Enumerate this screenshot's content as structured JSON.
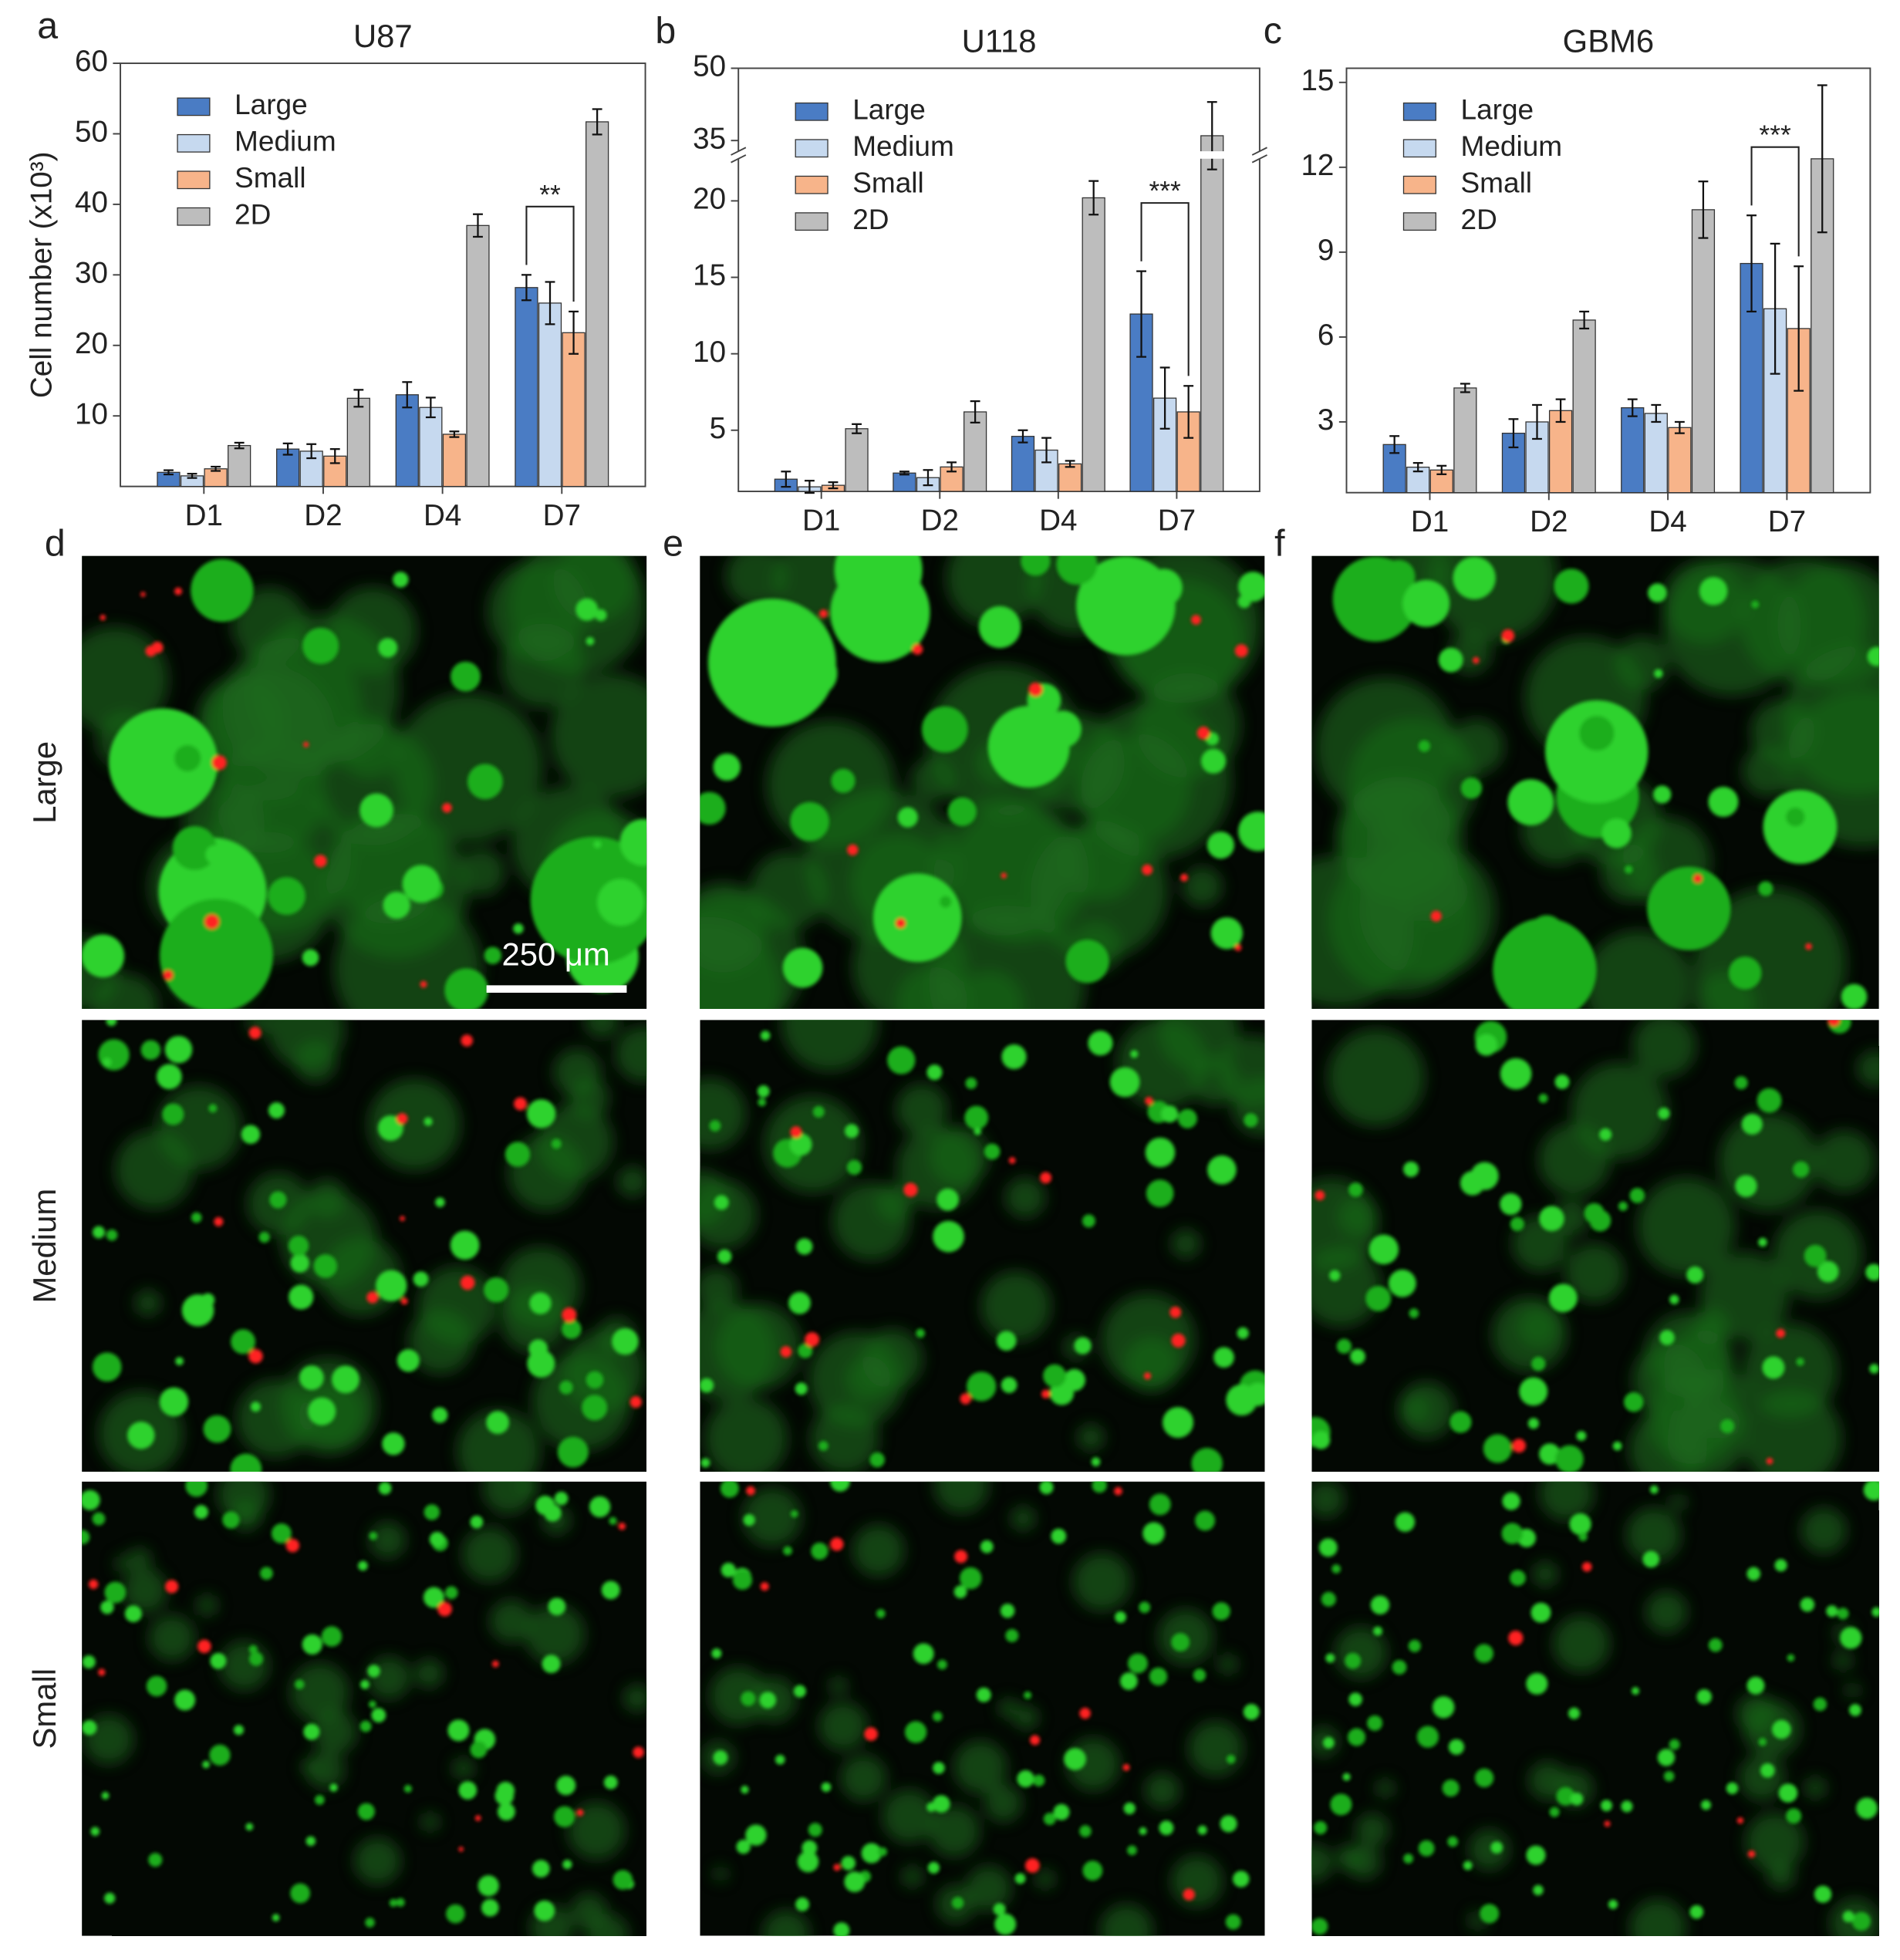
{
  "chart_data": [
    {
      "type": "bar",
      "panel": "a",
      "title": "U87",
      "ylabel": "Cell number (x10³)",
      "categories": [
        "D1",
        "D2",
        "D4",
        "D7"
      ],
      "series": [
        {
          "name": "Large",
          "color": "#4a7cc4",
          "values": [
            2,
            5.3,
            13,
            28.2
          ],
          "errors": [
            0.3,
            0.8,
            1.8,
            1.8
          ]
        },
        {
          "name": "Medium",
          "color": "#c6d9ef",
          "values": [
            1.5,
            5,
            11.2,
            26
          ],
          "errors": [
            0.3,
            1,
            1.4,
            3
          ]
        },
        {
          "name": "Small",
          "color": "#f7b48a",
          "values": [
            2.5,
            4.3,
            7.4,
            21.8
          ],
          "errors": [
            0.3,
            1,
            0.4,
            3
          ]
        },
        {
          "name": "2D",
          "color": "#bdbdbd",
          "values": [
            5.8,
            12.5,
            37,
            51.7
          ],
          "errors": [
            0.4,
            1.2,
            1.6,
            1.8
          ]
        }
      ],
      "ylim": [
        0,
        60
      ],
      "yticks": [
        10,
        20,
        30,
        40,
        50,
        60
      ],
      "annotation": "**",
      "legend": "upper left"
    },
    {
      "type": "bar",
      "panel": "b",
      "title": "U118",
      "categories": [
        "D1",
        "D2",
        "D4",
        "D7"
      ],
      "series": [
        {
          "name": "Large",
          "color": "#4a7cc4",
          "values": [
            1.8,
            2.2,
            4.6,
            12.6
          ],
          "errors": [
            0.5,
            0.1,
            0.4,
            2.8
          ]
        },
        {
          "name": "Medium",
          "color": "#c6d9ef",
          "values": [
            1.3,
            1.9,
            3.7,
            7.1
          ],
          "errors": [
            0.4,
            0.5,
            0.8,
            2
          ]
        },
        {
          "name": "Small",
          "color": "#f7b48a",
          "values": [
            1.4,
            2.6,
            2.8,
            6.2
          ],
          "errors": [
            0.2,
            0.3,
            0.2,
            1.7
          ]
        },
        {
          "name": "2D",
          "color": "#bdbdbd",
          "values": [
            5.1,
            6.2,
            20.2,
            36
          ],
          "errors": [
            0.3,
            0.7,
            1.1,
            7
          ]
        }
      ],
      "ylim": [
        1,
        50
      ],
      "ybreak": [
        23,
        32
      ],
      "yticks": [
        5,
        10,
        15,
        20,
        35,
        50
      ],
      "annotation": "***",
      "legend": "upper left"
    },
    {
      "type": "bar",
      "panel": "c",
      "title": "GBM6",
      "categories": [
        "D1",
        "D2",
        "D4",
        "D7"
      ],
      "series": [
        {
          "name": "Large",
          "color": "#4a7cc4",
          "values": [
            2.2,
            2.6,
            3.5,
            8.6
          ],
          "errors": [
            0.3,
            0.5,
            0.3,
            1.7
          ]
        },
        {
          "name": "Medium",
          "color": "#c6d9ef",
          "values": [
            1.4,
            3,
            3.3,
            7
          ],
          "errors": [
            0.15,
            0.6,
            0.3,
            2.3
          ]
        },
        {
          "name": "Small",
          "color": "#f7b48a",
          "values": [
            1.3,
            3.4,
            2.8,
            6.3
          ],
          "errors": [
            0.15,
            0.4,
            0.2,
            2.2
          ]
        },
        {
          "name": "2D",
          "color": "#bdbdbd",
          "values": [
            4.2,
            6.6,
            10.5,
            12.3
          ],
          "errors": [
            0.15,
            0.3,
            1,
            2.6
          ]
        }
      ],
      "ylim": [
        0.5,
        15.5
      ],
      "yticks": [
        3,
        6,
        9,
        12,
        15
      ],
      "annotation": "***",
      "legend": "upper left"
    }
  ],
  "images": {
    "panels": [
      "d",
      "e",
      "f"
    ],
    "rows": [
      "Large",
      "Medium",
      "Small"
    ],
    "scale_bar": "250 μm"
  }
}
